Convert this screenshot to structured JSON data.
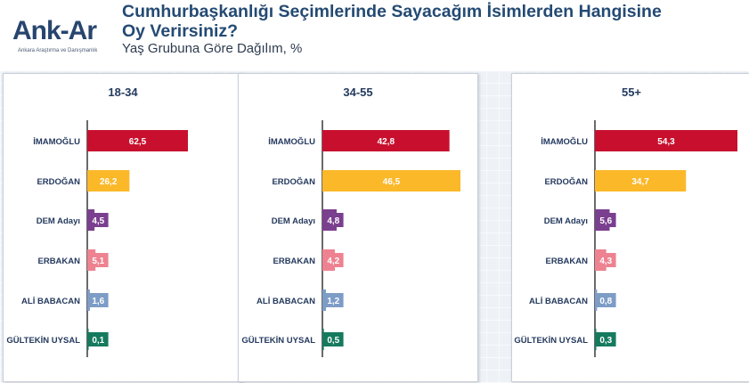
{
  "logo": {
    "text": "Ank-Ar",
    "subtitle": "Ankara Araştırma ve Danışmanlık"
  },
  "title": "Cumhurbaşkanlığı Seçimlerinde Sayacağım İsimlerden Hangisine Oy Verirsiniz?",
  "subtitle": "Yaş Grubuna Göre Dağılım, %",
  "chart_data": [
    {
      "type": "bar",
      "orientation": "horizontal",
      "title": "18-34",
      "categories": [
        "İMAMOĞLU",
        "ERDOĞAN",
        "DEM Adayı",
        "ERBAKAN",
        "ALİ BABACAN",
        "GÜLTEKİN UYSAL"
      ],
      "values": [
        62.5,
        26.2,
        4.5,
        5.1,
        1.6,
        0.1
      ],
      "labels": [
        "62,5",
        "26,2",
        "4,5",
        "5,1",
        "1,6",
        "0,1"
      ],
      "colors": [
        "#c8102e",
        "#fbb829",
        "#7b3f8f",
        "#ee8290",
        "#7d9cc6",
        "#157a5e"
      ]
    },
    {
      "type": "bar",
      "orientation": "horizontal",
      "title": "34-55",
      "categories": [
        "İMAMOĞLU",
        "ERDOĞAN",
        "DEM Adayı",
        "ERBAKAN",
        "ALİ BABACAN",
        "GÜLTEKİN UYSAL"
      ],
      "values": [
        42.8,
        46.5,
        4.8,
        4.2,
        1.2,
        0.5
      ],
      "labels": [
        "42,8",
        "46,5",
        "4,8",
        "4,2",
        "1,2",
        "0,5"
      ],
      "colors": [
        "#c8102e",
        "#fbb829",
        "#7b3f8f",
        "#ee8290",
        "#7d9cc6",
        "#157a5e"
      ]
    },
    {
      "type": "bar",
      "orientation": "horizontal",
      "title": "55+",
      "categories": [
        "İMAMOĞLU",
        "ERDOĞAN",
        "DEM Adayı",
        "ERBAKAN",
        "ALİ BABACAN",
        "GÜLTEKİN UYSAL"
      ],
      "values": [
        54.3,
        34.7,
        5.6,
        4.3,
        0.8,
        0.3
      ],
      "labels": [
        "54,3",
        "34,7",
        "5,6",
        "4,3",
        "0,8",
        "0,3"
      ],
      "colors": [
        "#c8102e",
        "#fbb829",
        "#7b3f8f",
        "#ee8290",
        "#7d9cc6",
        "#157a5e"
      ]
    }
  ]
}
